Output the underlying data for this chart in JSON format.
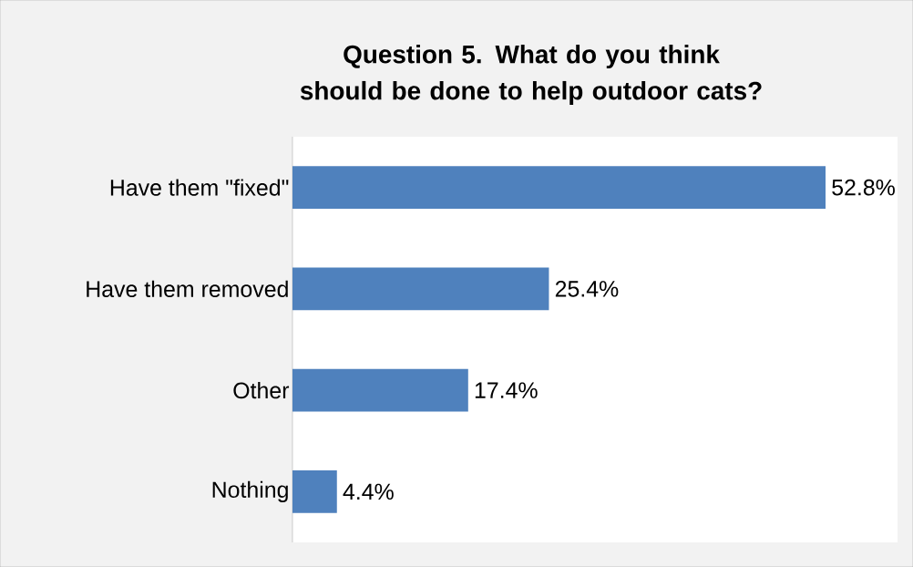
{
  "chart_data": {
    "type": "bar",
    "orientation": "horizontal",
    "title": "Question 5. What do you think should be done to help outdoor cats?",
    "categories": [
      "Have them \"fixed\"",
      "Have them removed",
      "Other",
      "Nothing"
    ],
    "values": [
      52.8,
      25.4,
      17.4,
      4.4
    ],
    "value_labels": [
      "52.8%",
      "25.4%",
      "17.4%",
      "4.4%"
    ],
    "color": "#4f81bd"
  }
}
